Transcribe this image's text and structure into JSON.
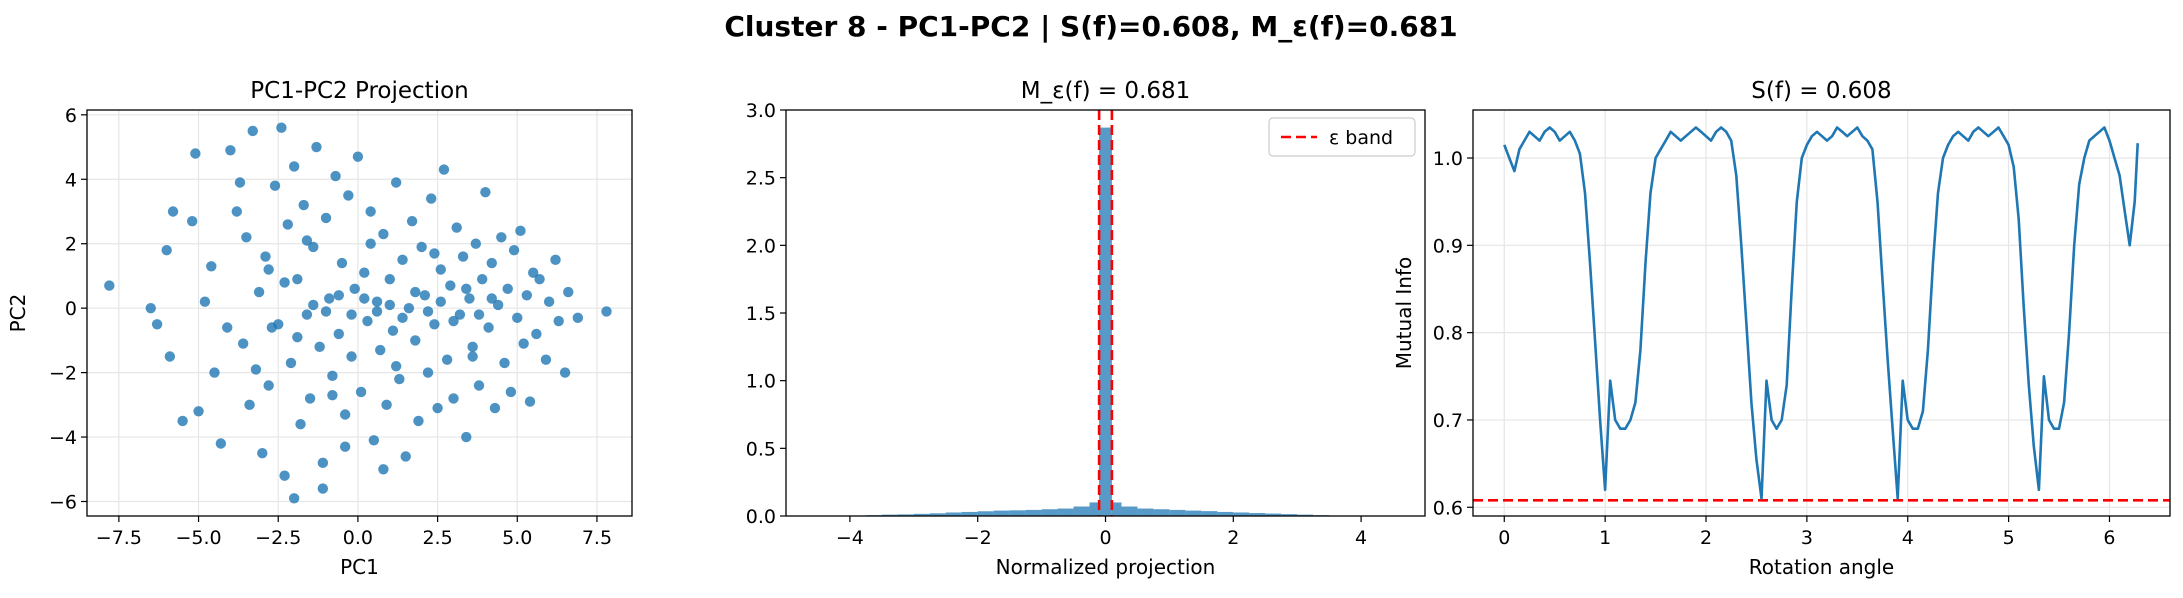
{
  "figure": {
    "suptitle": "Cluster 8 - PC1-PC2 | S(f)=0.608, M_ε(f)=0.681"
  },
  "colors": {
    "series": "#1f77b4",
    "threshold": "#ff0000",
    "grid": "#e6e6e6"
  },
  "chart_data": [
    {
      "type": "scatter",
      "title": "PC1-PC2 Projection",
      "xlabel": "PC1",
      "ylabel": "PC2",
      "xlim": [
        -8.5,
        8.6
      ],
      "ylim": [
        -6.45,
        6.15
      ],
      "xticks": [
        -7.5,
        -5.0,
        -2.5,
        0.0,
        2.5,
        5.0,
        7.5
      ],
      "xtick_labels": [
        "−7.5",
        "−5.0",
        "−2.5",
        "0.0",
        "2.5",
        "5.0",
        "7.5"
      ],
      "yticks": [
        -6,
        -4,
        -2,
        0,
        2,
        4,
        6
      ],
      "ytick_labels": [
        "−6",
        "−4",
        "−2",
        "0",
        "2",
        "4",
        "6"
      ],
      "grid": true,
      "points": [
        [
          -7.8,
          0.7
        ],
        [
          -6.5,
          0.0
        ],
        [
          -6.3,
          -0.5
        ],
        [
          -6.0,
          1.8
        ],
        [
          -5.8,
          3.0
        ],
        [
          -5.9,
          -1.5
        ],
        [
          -5.5,
          -3.5
        ],
        [
          -5.2,
          2.7
        ],
        [
          -5.0,
          -3.2
        ],
        [
          -5.1,
          4.8
        ],
        [
          -4.8,
          0.2
        ],
        [
          -4.6,
          1.3
        ],
        [
          -4.5,
          -2.0
        ],
        [
          -4.3,
          -4.2
        ],
        [
          -4.0,
          4.9
        ],
        [
          -3.8,
          3.0
        ],
        [
          -3.6,
          -1.1
        ],
        [
          -3.5,
          2.2
        ],
        [
          -3.4,
          -3.0
        ],
        [
          -3.3,
          5.5
        ],
        [
          -3.1,
          0.5
        ],
        [
          -3.0,
          -4.5
        ],
        [
          -2.9,
          1.6
        ],
        [
          -2.8,
          -2.4
        ],
        [
          -2.6,
          3.8
        ],
        [
          -2.5,
          -0.5
        ],
        [
          -2.4,
          5.6
        ],
        [
          -2.3,
          -5.2
        ],
        [
          -2.2,
          2.6
        ],
        [
          -2.1,
          -1.7
        ],
        [
          -2.0,
          4.4
        ],
        [
          -1.9,
          0.9
        ],
        [
          -1.8,
          -3.6
        ],
        [
          -1.7,
          3.2
        ],
        [
          -1.6,
          -0.2
        ],
        [
          -1.5,
          -2.8
        ],
        [
          -1.4,
          1.9
        ],
        [
          -1.3,
          5.0
        ],
        [
          -1.2,
          -1.2
        ],
        [
          -1.1,
          -4.8
        ],
        [
          -1.0,
          2.8
        ],
        [
          -0.9,
          0.3
        ],
        [
          -0.8,
          -2.1
        ],
        [
          -0.7,
          4.1
        ],
        [
          -0.6,
          -0.8
        ],
        [
          -0.5,
          1.4
        ],
        [
          -0.4,
          -3.3
        ],
        [
          -0.3,
          3.5
        ],
        [
          -0.2,
          -1.5
        ],
        [
          -0.1,
          0.6
        ],
        [
          0.0,
          4.7
        ],
        [
          0.1,
          -2.6
        ],
        [
          0.2,
          1.1
        ],
        [
          0.3,
          -0.4
        ],
        [
          0.4,
          3.0
        ],
        [
          0.5,
          -4.1
        ],
        [
          0.6,
          0.2
        ],
        [
          0.7,
          -1.3
        ],
        [
          0.8,
          2.3
        ],
        [
          0.9,
          -3.0
        ],
        [
          1.0,
          0.9
        ],
        [
          1.1,
          -0.7
        ],
        [
          1.2,
          3.9
        ],
        [
          1.3,
          -2.2
        ],
        [
          1.4,
          1.5
        ],
        [
          1.5,
          -4.6
        ],
        [
          1.6,
          0.0
        ],
        [
          1.7,
          2.7
        ],
        [
          1.8,
          -1.0
        ],
        [
          1.9,
          -3.5
        ],
        [
          2.0,
          1.9
        ],
        [
          2.1,
          0.4
        ],
        [
          2.2,
          -2.0
        ],
        [
          2.3,
          3.4
        ],
        [
          2.4,
          -0.5
        ],
        [
          2.5,
          -3.1
        ],
        [
          2.6,
          1.2
        ],
        [
          2.7,
          4.3
        ],
        [
          2.8,
          -1.6
        ],
        [
          2.9,
          0.7
        ],
        [
          3.0,
          -2.8
        ],
        [
          3.1,
          2.5
        ],
        [
          3.2,
          -0.2
        ],
        [
          3.3,
          1.6
        ],
        [
          3.4,
          -4.0
        ],
        [
          3.5,
          0.3
        ],
        [
          3.6,
          -1.2
        ],
        [
          3.7,
          2.0
        ],
        [
          3.8,
          -2.4
        ],
        [
          3.9,
          0.9
        ],
        [
          4.0,
          3.6
        ],
        [
          4.1,
          -0.6
        ],
        [
          4.2,
          1.4
        ],
        [
          4.3,
          -3.1
        ],
        [
          4.4,
          0.1
        ],
        [
          4.5,
          2.2
        ],
        [
          4.6,
          -1.7
        ],
        [
          4.7,
          0.6
        ],
        [
          4.8,
          -2.6
        ],
        [
          4.9,
          1.8
        ],
        [
          5.0,
          -0.3
        ],
        [
          5.1,
          2.4
        ],
        [
          5.2,
          -1.1
        ],
        [
          5.3,
          0.4
        ],
        [
          5.4,
          -2.9
        ],
        [
          5.5,
          1.1
        ],
        [
          5.6,
          -0.8
        ],
        [
          5.7,
          0.9
        ],
        [
          5.9,
          -1.6
        ],
        [
          6.0,
          0.2
        ],
        [
          6.2,
          1.5
        ],
        [
          6.3,
          -0.4
        ],
        [
          6.5,
          -2.0
        ],
        [
          6.6,
          0.5
        ],
        [
          6.9,
          -0.3
        ],
        [
          7.8,
          -0.1
        ],
        [
          -2.7,
          -0.6
        ],
        [
          -2.3,
          0.8
        ],
        [
          -1.9,
          -0.9
        ],
        [
          -1.4,
          0.1
        ],
        [
          -1.0,
          -0.1
        ],
        [
          -0.6,
          0.4
        ],
        [
          -0.2,
          -0.2
        ],
        [
          0.2,
          0.3
        ],
        [
          0.6,
          -0.1
        ],
        [
          1.0,
          0.1
        ],
        [
          1.4,
          -0.3
        ],
        [
          1.8,
          0.5
        ],
        [
          2.2,
          -0.1
        ],
        [
          2.6,
          0.2
        ],
        [
          3.0,
          -0.4
        ],
        [
          3.4,
          0.6
        ],
        [
          3.8,
          -0.2
        ],
        [
          4.2,
          0.3
        ],
        [
          -3.2,
          -1.9
        ],
        [
          -2.8,
          1.2
        ],
        [
          -1.6,
          2.1
        ],
        [
          -0.8,
          -2.7
        ],
        [
          0.4,
          2.0
        ],
        [
          1.2,
          -1.8
        ],
        [
          2.4,
          1.7
        ],
        [
          3.6,
          -1.5
        ],
        [
          -4.1,
          -0.6
        ],
        [
          -3.7,
          3.9
        ],
        [
          -1.1,
          -5.6
        ],
        [
          0.8,
          -5.0
        ],
        [
          -2.0,
          -5.9
        ],
        [
          -0.4,
          -4.3
        ]
      ]
    },
    {
      "type": "bar",
      "title": "M_ε(f) = 0.681",
      "xlabel": "Normalized projection",
      "ylabel": "",
      "xlim": [
        -5.0,
        5.0
      ],
      "ylim": [
        0.0,
        3.0
      ],
      "xticks": [
        -4,
        -2,
        0,
        2,
        4
      ],
      "xtick_labels": [
        "−4",
        "−2",
        "0",
        "2",
        "4"
      ],
      "yticks": [
        0.0,
        0.5,
        1.0,
        1.5,
        2.0,
        2.5,
        3.0
      ],
      "ytick_labels": [
        "0.0",
        "0.5",
        "1.0",
        "1.5",
        "2.0",
        "2.5",
        "3.0"
      ],
      "grid": false,
      "legend": {
        "label": "ε band",
        "placement": "upper right"
      },
      "epsilon_band": [
        -0.1,
        0.1
      ],
      "bins": [
        [
          -4.0,
          -3.75,
          0.003
        ],
        [
          -3.75,
          -3.5,
          0.006
        ],
        [
          -3.5,
          -3.25,
          0.01
        ],
        [
          -3.25,
          -3.0,
          0.012
        ],
        [
          -3.0,
          -2.75,
          0.016
        ],
        [
          -2.75,
          -2.5,
          0.02
        ],
        [
          -2.5,
          -2.25,
          0.026
        ],
        [
          -2.25,
          -2.0,
          0.03
        ],
        [
          -2.0,
          -1.75,
          0.035
        ],
        [
          -1.75,
          -1.5,
          0.04
        ],
        [
          -1.5,
          -1.25,
          0.042
        ],
        [
          -1.25,
          -1.0,
          0.045
        ],
        [
          -1.0,
          -0.75,
          0.05
        ],
        [
          -0.75,
          -0.5,
          0.055
        ],
        [
          -0.5,
          -0.25,
          0.07
        ],
        [
          -0.25,
          -0.1,
          0.1
        ],
        [
          -0.1,
          0.1,
          2.87
        ],
        [
          0.1,
          0.25,
          0.1
        ],
        [
          0.25,
          0.5,
          0.07
        ],
        [
          0.5,
          0.75,
          0.055
        ],
        [
          0.75,
          1.0,
          0.05
        ],
        [
          1.0,
          1.25,
          0.045
        ],
        [
          1.25,
          1.5,
          0.04
        ],
        [
          1.5,
          1.75,
          0.036
        ],
        [
          1.75,
          2.0,
          0.03
        ],
        [
          2.0,
          2.25,
          0.026
        ],
        [
          2.25,
          2.5,
          0.022
        ],
        [
          2.5,
          2.75,
          0.018
        ],
        [
          2.75,
          3.0,
          0.014
        ],
        [
          3.0,
          3.25,
          0.01
        ],
        [
          3.25,
          3.5,
          0.006
        ]
      ]
    },
    {
      "type": "line",
      "title": "S(f) = 0.608",
      "xlabel": "Rotation angle",
      "ylabel": "Mutual Info",
      "xlim": [
        -0.31,
        6.6
      ],
      "ylim": [
        0.59,
        1.055
      ],
      "xticks": [
        0,
        1,
        2,
        3,
        4,
        5,
        6
      ],
      "xtick_labels": [
        "0",
        "1",
        "2",
        "3",
        "4",
        "5",
        "6"
      ],
      "yticks": [
        0.6,
        0.7,
        0.8,
        0.9,
        1.0
      ],
      "ytick_labels": [
        "0.6",
        "0.7",
        "0.8",
        "0.9",
        "1.0"
      ],
      "grid": true,
      "threshold": 0.608,
      "x": [
        0.0,
        0.05,
        0.1,
        0.15,
        0.2,
        0.25,
        0.3,
        0.35,
        0.4,
        0.45,
        0.5,
        0.55,
        0.6,
        0.65,
        0.7,
        0.75,
        0.8,
        0.85,
        0.9,
        0.95,
        1.0,
        1.05,
        1.1,
        1.15,
        1.2,
        1.25,
        1.3,
        1.35,
        1.4,
        1.45,
        1.5,
        1.55,
        1.6,
        1.65,
        1.7,
        1.75,
        1.8,
        1.85,
        1.9,
        1.95,
        2.0,
        2.05,
        2.1,
        2.15,
        2.2,
        2.25,
        2.3,
        2.35,
        2.4,
        2.45,
        2.5,
        2.55,
        2.6,
        2.65,
        2.7,
        2.75,
        2.8,
        2.85,
        2.9,
        2.95,
        3.0,
        3.05,
        3.1,
        3.15,
        3.2,
        3.25,
        3.3,
        3.35,
        3.4,
        3.45,
        3.5,
        3.55,
        3.6,
        3.65,
        3.7,
        3.75,
        3.8,
        3.85,
        3.9,
        3.95,
        4.0,
        4.05,
        4.1,
        4.15,
        4.2,
        4.25,
        4.3,
        4.35,
        4.4,
        4.45,
        4.5,
        4.55,
        4.6,
        4.65,
        4.7,
        4.75,
        4.8,
        4.85,
        4.9,
        4.95,
        5.0,
        5.05,
        5.1,
        5.15,
        5.2,
        5.25,
        5.3,
        5.35,
        5.4,
        5.45,
        5.5,
        5.55,
        5.6,
        5.65,
        5.7,
        5.75,
        5.8,
        5.85,
        5.9,
        5.95,
        6.0,
        6.05,
        6.1,
        6.15,
        6.2,
        6.25,
        6.28
      ],
      "y": [
        1.015,
        1.0,
        0.985,
        1.01,
        1.02,
        1.03,
        1.025,
        1.02,
        1.03,
        1.035,
        1.03,
        1.02,
        1.025,
        1.03,
        1.02,
        1.005,
        0.96,
        0.88,
        0.79,
        0.7,
        0.62,
        0.745,
        0.7,
        0.69,
        0.69,
        0.7,
        0.72,
        0.78,
        0.88,
        0.96,
        1.0,
        1.01,
        1.02,
        1.03,
        1.025,
        1.02,
        1.025,
        1.03,
        1.035,
        1.03,
        1.025,
        1.02,
        1.03,
        1.035,
        1.03,
        1.02,
        0.98,
        0.9,
        0.81,
        0.72,
        0.655,
        0.61,
        0.745,
        0.7,
        0.69,
        0.7,
        0.74,
        0.85,
        0.95,
        1.0,
        1.015,
        1.025,
        1.03,
        1.025,
        1.02,
        1.025,
        1.035,
        1.03,
        1.025,
        1.03,
        1.035,
        1.025,
        1.02,
        1.01,
        0.95,
        0.86,
        0.77,
        0.69,
        0.61,
        0.745,
        0.7,
        0.69,
        0.69,
        0.71,
        0.78,
        0.88,
        0.96,
        1.0,
        1.015,
        1.025,
        1.03,
        1.025,
        1.02,
        1.03,
        1.035,
        1.03,
        1.025,
        1.03,
        1.035,
        1.025,
        1.015,
        0.99,
        0.93,
        0.83,
        0.74,
        0.67,
        0.62,
        0.75,
        0.7,
        0.69,
        0.69,
        0.72,
        0.8,
        0.9,
        0.97,
        1.0,
        1.02,
        1.025,
        1.03,
        1.035,
        1.02,
        1.0,
        0.98,
        0.94,
        0.9,
        0.95,
        1.017
      ]
    }
  ]
}
